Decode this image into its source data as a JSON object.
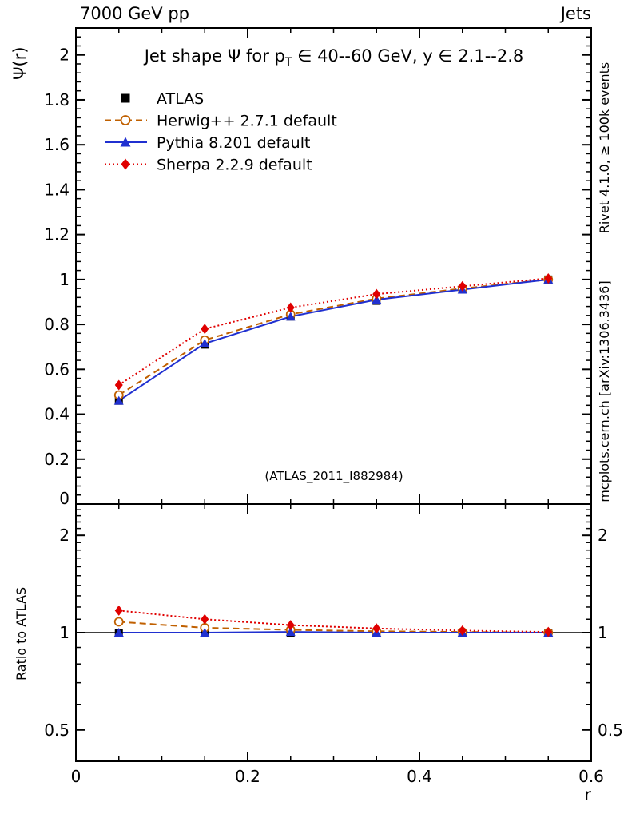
{
  "header": {
    "left": "7000 GeV pp",
    "right": "Jets"
  },
  "side_notes": {
    "top_right": "Rivet 4.1.0, ≥ 100k events",
    "bottom_right": "mcplots.cern.ch [arXiv:1306.3436]"
  },
  "watermark": "(ATLAS_2011_I882984)",
  "title": {
    "pre": "Jet shape Ψ for p",
    "sub": "T",
    "post": " ∈ 40--60 GeV, y ∈ 2.1--2.8"
  },
  "axes": {
    "xlabel": "r",
    "ylabel_main": "Ψ(r)",
    "ylabel_ratio": "Ratio to ATLAS"
  },
  "chart_data": {
    "type": "line",
    "title": "Jet shape Ψ for p_T ∈ 40--60 GeV, y ∈ 2.1--2.8",
    "xlabel": "r",
    "x": [
      0.05,
      0.15,
      0.25,
      0.35,
      0.45,
      0.55
    ],
    "xlim": [
      0,
      0.6
    ],
    "x_minor_step": 0.05,
    "xticks": {
      "values": [
        0,
        0.2,
        0.4,
        0.6
      ],
      "labels": [
        "0",
        "0.2",
        "0.4",
        "0.6"
      ]
    },
    "panels": {
      "main": {
        "ylabel": "Ψ(r)",
        "yscale": "linear",
        "ylim": [
          0,
          2.12
        ],
        "y_minor_step": 0.04,
        "yticks": {
          "values": [
            0,
            0.2,
            0.4,
            0.6,
            0.8,
            1,
            1.2,
            1.4,
            1.6,
            1.8,
            2
          ],
          "labels": [
            "0",
            "0.2",
            "0.4",
            "0.6",
            "0.8",
            "1",
            "1.2",
            "1.4",
            "1.6",
            "1.8",
            "2"
          ]
        },
        "series": [
          {
            "id": "atlas",
            "name": "ATLAS",
            "color": "#000000",
            "marker": "square",
            "line": "none",
            "values": [
              0.46,
              0.71,
              0.835,
              0.905,
              0.955,
              1.0
            ]
          },
          {
            "id": "herwig",
            "name": "Herwig++ 2.7.1 default",
            "color": "#c06000",
            "marker": "circle-open",
            "line": "dashed",
            "values": [
              0.485,
              0.73,
              0.845,
              0.915,
              0.96,
              1.0
            ]
          },
          {
            "id": "pythia",
            "name": "Pythia 8.201 default",
            "color": "#2030d0",
            "marker": "triangle",
            "line": "solid",
            "values": [
              0.46,
              0.715,
              0.835,
              0.91,
              0.955,
              1.0
            ]
          },
          {
            "id": "sherpa",
            "name": "Sherpa 2.2.9 default",
            "color": "#e00000",
            "marker": "diamond",
            "line": "dotted",
            "values": [
              0.53,
              0.78,
              0.875,
              0.935,
              0.97,
              1.005
            ]
          }
        ]
      },
      "ratio": {
        "ylabel": "Ratio to ATLAS",
        "yscale": "log",
        "ylim": [
          0.4,
          2.5
        ],
        "labels_right": true,
        "yticks": {
          "values": [
            0.5,
            1,
            2
          ],
          "labels": [
            "0.5",
            "1",
            "2"
          ]
        },
        "yminors": [
          0.4,
          0.6,
          0.7,
          0.8,
          0.9,
          1.1,
          1.2,
          1.3,
          1.4,
          1.5,
          1.6,
          1.7,
          1.8,
          1.9,
          2.1,
          2.2,
          2.3,
          2.4
        ],
        "series": [
          {
            "id": "atlas",
            "name": "ATLAS",
            "color": "#000000",
            "marker": "square",
            "line": "none",
            "values": [
              1,
              1,
              1,
              1,
              1,
              1
            ]
          },
          {
            "id": "herwig",
            "name": "Herwig++ 2.7.1 default",
            "color": "#c06000",
            "marker": "circle-open",
            "line": "dashed",
            "values": [
              1.08,
              1.035,
              1.02,
              1.01,
              1.005,
              1.0
            ]
          },
          {
            "id": "pythia",
            "name": "Pythia 8.201 default",
            "color": "#2030d0",
            "marker": "triangle",
            "line": "solid",
            "values": [
              1.0,
              1.0,
              1.005,
              1.0,
              1.0,
              1.0
            ]
          },
          {
            "id": "sherpa",
            "name": "Sherpa 2.2.9 default",
            "color": "#e00000",
            "marker": "diamond",
            "line": "dotted",
            "values": [
              1.17,
              1.1,
              1.055,
              1.03,
              1.015,
              1.005
            ]
          }
        ]
      }
    }
  }
}
